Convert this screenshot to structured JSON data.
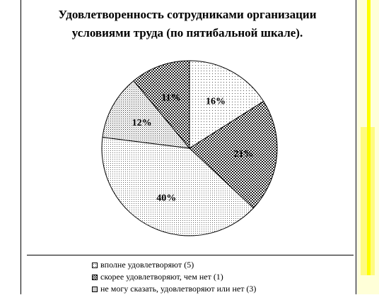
{
  "chart_data": {
    "type": "pie",
    "title": "Удовлетворенность сотрудниками организации условиями труда (по пятибальной шкале).",
    "title_lines": [
      "Удовлетворенность сотрудниками организации",
      "условиями труда (по пятибальной шкале)."
    ],
    "slices": [
      {
        "label": "вполне удовлетворяют (5)",
        "value": 16,
        "display": "16%",
        "pattern": "dots-sparse"
      },
      {
        "label": "скорее удовлетворяют, чем нет (1)",
        "value": 21,
        "display": "21%",
        "pattern": "checker-dark"
      },
      {
        "label": "",
        "value": 40,
        "display": "40%",
        "pattern": "dots-fine"
      },
      {
        "label": "не могу сказать, удовлетворяют или нет (3)",
        "value": 12,
        "display": "12%",
        "pattern": "dots-medium"
      },
      {
        "label": "",
        "value": 11,
        "display": "11%",
        "pattern": "checker-dark"
      }
    ],
    "legend": [
      {
        "text": "вполне удовлетворяют (5)",
        "pattern": "dots-sparse"
      },
      {
        "text": "скорее удовлетворяют, чем нет (1)",
        "pattern": "checker-dark"
      },
      {
        "text": "не могу сказать, удовлетворяют или нет (3)",
        "pattern": "dots-medium"
      }
    ],
    "legend_position": "bottom"
  }
}
